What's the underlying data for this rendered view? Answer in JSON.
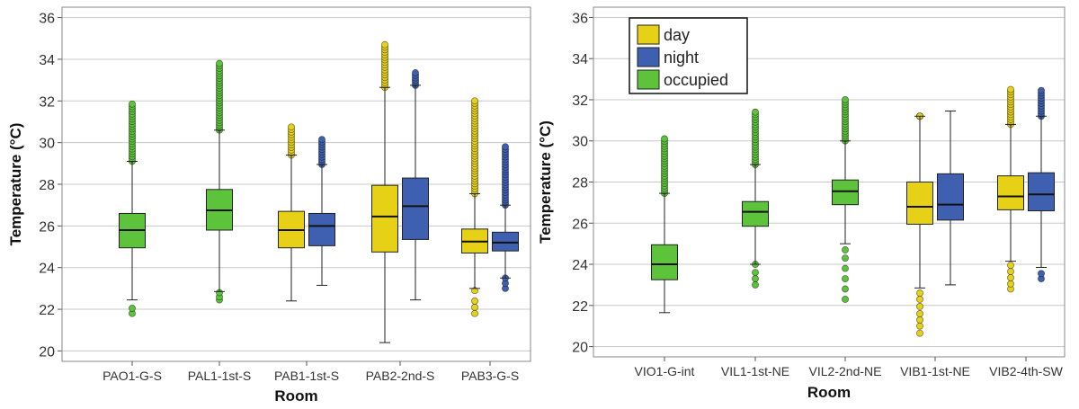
{
  "colors": {
    "day": "#e6d117",
    "night": "#3f5fb0",
    "occupied": "#5cc33a",
    "grid": "#c8c8c8",
    "frame": "#888888"
  },
  "chart_data": [
    {
      "type": "boxplot",
      "xlabel": "Room",
      "ylabel": "Temperature (°C)",
      "ylim": [
        19.5,
        36.5
      ],
      "yticks": [
        20,
        22,
        24,
        26,
        28,
        30,
        32,
        34,
        36
      ],
      "ytick_labels": [
        "20",
        "22",
        "24",
        "26",
        "28",
        "30",
        "32",
        "34",
        "36"
      ],
      "grid": "horizontal",
      "categories": [
        "PAO1-G-S",
        "PAL1-1st-S",
        "PAB1-1st-S",
        "PAB2-2nd-S",
        "PAB3-G-S"
      ],
      "boxes": [
        {
          "category": "PAO1-G-S",
          "series": "occupied",
          "whisker_low": 22.45,
          "q1": 24.95,
          "median": 25.8,
          "q3": 26.6,
          "whisker_high": 29.1,
          "outliers_low": [
            21.8,
            22.05
          ],
          "outlier_high_range": [
            29.1,
            31.85
          ]
        },
        {
          "category": "PAL1-1st-S",
          "series": "occupied",
          "whisker_low": 22.85,
          "q1": 25.8,
          "median": 26.75,
          "q3": 27.75,
          "whisker_high": 30.6,
          "outliers_low": [
            22.45,
            22.6,
            22.8
          ],
          "outlier_high_range": [
            30.6,
            33.8
          ]
        },
        {
          "category": "PAB1-1st-S",
          "series": "day",
          "whisker_low": 22.4,
          "q1": 24.95,
          "median": 25.8,
          "q3": 26.7,
          "whisker_high": 29.4,
          "outliers_low": [],
          "outlier_high_range": [
            29.4,
            30.75
          ]
        },
        {
          "category": "PAB1-1st-S",
          "series": "night",
          "whisker_low": 23.15,
          "q1": 25.05,
          "median": 26.0,
          "q3": 26.6,
          "whisker_high": 28.95,
          "outliers_low": [],
          "outlier_high_range": [
            28.95,
            30.15
          ]
        },
        {
          "category": "PAB2-2nd-S",
          "series": "day",
          "whisker_low": 20.4,
          "q1": 24.75,
          "median": 26.45,
          "q3": 27.95,
          "whisker_high": 32.65,
          "outliers_low": [],
          "outlier_high_range": [
            32.65,
            34.7
          ]
        },
        {
          "category": "PAB2-2nd-S",
          "series": "night",
          "whisker_low": 22.45,
          "q1": 25.35,
          "median": 26.95,
          "q3": 28.3,
          "whisker_high": 32.75,
          "outliers_low": [],
          "outlier_high_range": [
            32.75,
            33.35
          ]
        },
        {
          "category": "PAB3-G-S",
          "series": "day",
          "whisker_low": 23.0,
          "q1": 24.7,
          "median": 25.25,
          "q3": 25.85,
          "whisker_high": 27.55,
          "outliers_low": [
            21.8,
            22.1,
            22.4,
            22.9
          ],
          "outlier_high_range": [
            27.55,
            32.0
          ]
        },
        {
          "category": "PAB3-G-S",
          "series": "night",
          "whisker_low": 23.5,
          "q1": 24.8,
          "median": 25.2,
          "q3": 25.7,
          "whisker_high": 27.0,
          "outliers_low": [
            23.0,
            23.25,
            23.5
          ],
          "outlier_high_range": [
            27.0,
            29.8
          ]
        }
      ]
    },
    {
      "type": "boxplot",
      "xlabel": "Room",
      "ylabel": "Temperature (°C)",
      "ylim": [
        19.5,
        36.5
      ],
      "yticks": [
        20,
        22,
        24,
        26,
        28,
        30,
        32,
        34,
        36
      ],
      "ytick_labels": [
        "20",
        "22",
        "24",
        "26",
        "28",
        "30",
        "32",
        "34",
        "36"
      ],
      "grid": "horizontal",
      "legend": {
        "position": "top-left",
        "entries": [
          "day",
          "night",
          "occupied"
        ]
      },
      "categories": [
        "VIO1-G-int",
        "VIL1-1st-NE",
        "VIL2-2nd-NE",
        "VIB1-1st-NE",
        "VIB2-4th-SW"
      ],
      "boxes": [
        {
          "category": "VIO1-G-int",
          "series": "occupied",
          "whisker_low": 21.65,
          "q1": 23.25,
          "median": 24.0,
          "q3": 24.95,
          "whisker_high": 27.45,
          "outliers_low": [],
          "outlier_high_range": [
            27.45,
            30.1
          ]
        },
        {
          "category": "VIL1-1st-NE",
          "series": "occupied",
          "whisker_low": 24.0,
          "q1": 25.85,
          "median": 26.55,
          "q3": 27.05,
          "whisker_high": 28.85,
          "outliers_low": [
            23.0,
            23.3,
            23.6,
            24.0
          ],
          "outlier_high_range": [
            28.85,
            31.4
          ]
        },
        {
          "category": "VIL2-2nd-NE",
          "series": "occupied",
          "whisker_low": 25.0,
          "q1": 26.9,
          "median": 27.55,
          "q3": 28.1,
          "whisker_high": 30.0,
          "outliers_low": [
            22.3,
            22.8,
            23.3,
            23.8,
            24.3,
            24.7
          ],
          "outlier_high_range": [
            30.0,
            32.0
          ]
        },
        {
          "category": "VIB1-1st-NE",
          "series": "day",
          "whisker_low": 22.85,
          "q1": 25.95,
          "median": 26.8,
          "q3": 28.0,
          "whisker_high": 31.2,
          "outliers_low": [
            20.65,
            21.0,
            21.3,
            21.6,
            21.95,
            22.3,
            22.6
          ],
          "outlier_high_range": [
            31.2,
            31.2
          ]
        },
        {
          "category": "VIB1-1st-NE",
          "series": "night",
          "whisker_low": 23.0,
          "q1": 26.15,
          "median": 26.9,
          "q3": 28.4,
          "whisker_high": 31.45,
          "outliers_low": [],
          "outlier_high_range": []
        },
        {
          "category": "VIB2-4th-SW",
          "series": "day",
          "whisker_low": 24.15,
          "q1": 26.65,
          "median": 27.3,
          "q3": 28.3,
          "whisker_high": 30.8,
          "outliers_low": [
            22.8,
            23.05,
            23.35,
            23.65,
            23.95
          ],
          "outlier_high_range": [
            30.8,
            32.5
          ]
        },
        {
          "category": "VIB2-4th-SW",
          "series": "night",
          "whisker_low": 23.85,
          "q1": 26.6,
          "median": 27.4,
          "q3": 28.45,
          "whisker_high": 31.2,
          "outliers_low": [
            23.3,
            23.55
          ],
          "outlier_high_range": [
            31.2,
            32.45
          ]
        }
      ]
    }
  ]
}
